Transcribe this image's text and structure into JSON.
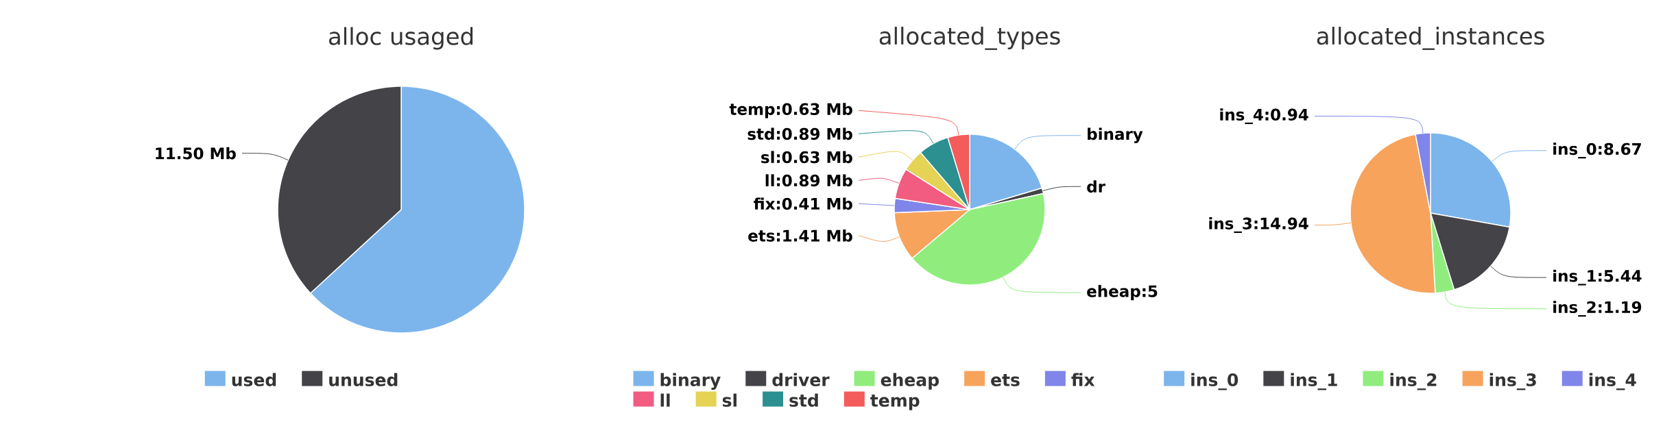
{
  "chart_data": [
    {
      "type": "pie",
      "title": "alloc usaged",
      "categories": [
        "used",
        "unused"
      ],
      "values": [
        19.7,
        11.5
      ],
      "colors": [
        "#7cb5ec",
        "#434348"
      ],
      "value_labels": [
        null,
        "11.50 Mb"
      ],
      "legend": "bottom"
    },
    {
      "type": "pie",
      "title": "allocated_types",
      "categories": [
        "binary",
        "driver",
        "eheap",
        "ets",
        "fix",
        "ll",
        "sl",
        "std",
        "temp"
      ],
      "values": [
        2.74,
        0.16,
        5.68,
        1.41,
        0.41,
        0.89,
        0.63,
        0.89,
        0.63
      ],
      "colors": [
        "#7cb5ec",
        "#434348",
        "#90ed7d",
        "#f7a35c",
        "#8085e9",
        "#f15c80",
        "#e4d354",
        "#2b908f",
        "#f45b5b"
      ],
      "annotations": [
        {
          "text": "binary",
          "x": "binary"
        },
        {
          "text": "dr",
          "x": "driver"
        },
        {
          "text": "eheap:5",
          "x": "eheap"
        }
      ],
      "value_labels": [
        null,
        null,
        null,
        "ets:1.41 Mb",
        "fix:0.41 Mb",
        "ll:0.89 Mb",
        "sl:0.63 Mb",
        "std:0.89 Mb",
        "temp:0.63 Mb"
      ],
      "legend": "bottom"
    },
    {
      "type": "pie",
      "title": "allocated_instances",
      "categories": [
        "ins_0",
        "ins_1",
        "ins_2",
        "ins_3",
        "ins_4"
      ],
      "values": [
        8.67,
        5.44,
        1.19,
        14.94,
        0.94
      ],
      "colors": [
        "#7cb5ec",
        "#434348",
        "#90ed7d",
        "#f7a35c",
        "#8085e9"
      ],
      "value_labels": [
        "ins_0:8.67",
        "ins_1:5.44",
        "ins_2:1.19",
        "ins_3:14.94",
        "ins_4:0.94"
      ],
      "legend": "bottom"
    }
  ]
}
